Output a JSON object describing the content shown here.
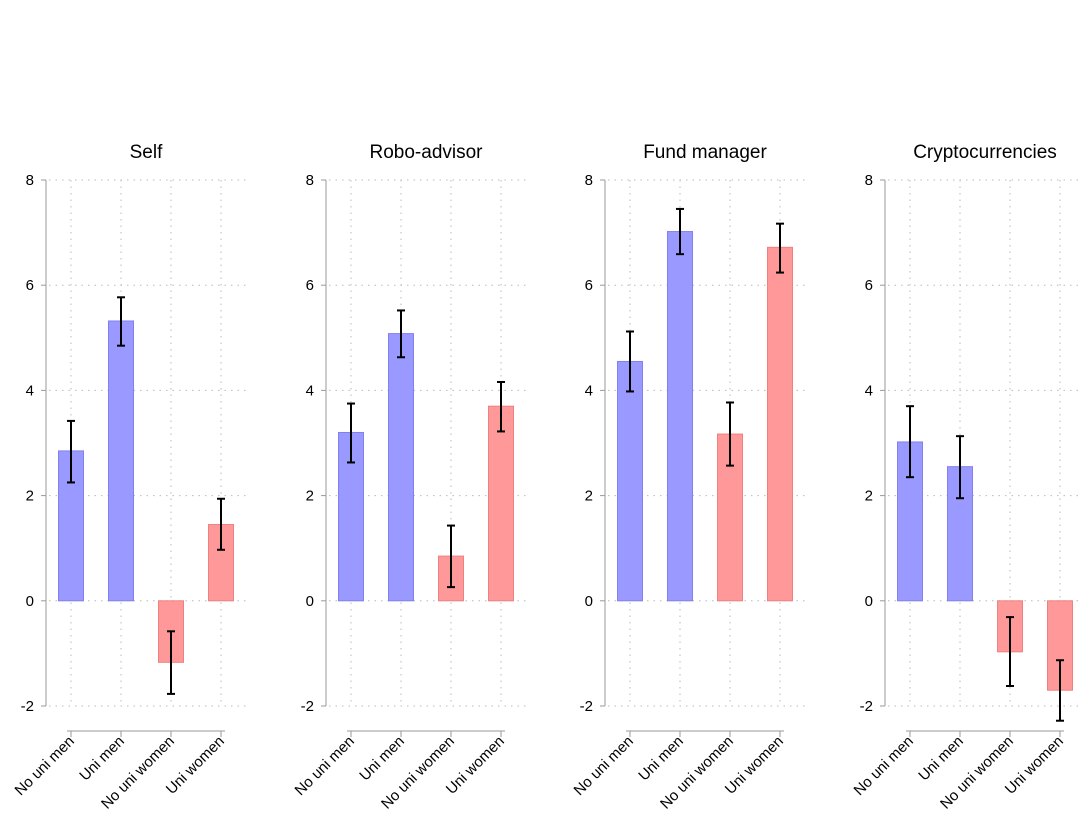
{
  "colors": {
    "men": "#9999ff",
    "women": "#ff9999",
    "men_edge": "#8080ee",
    "women_edge": "#ee8080",
    "error": "#000000"
  },
  "chart_data": [
    {
      "type": "bar",
      "title": "Self",
      "categories": [
        "No uni men",
        "Uni men",
        "No uni women",
        "Uni women"
      ],
      "values": [
        2.85,
        5.32,
        -1.17,
        1.45
      ],
      "ci_low": [
        2.25,
        4.85,
        -1.77,
        0.97
      ],
      "ci_high": [
        3.42,
        5.77,
        -0.58,
        1.94
      ],
      "ylim": [
        -2,
        8
      ],
      "yticks": [
        "-2",
        "0",
        "2",
        "4",
        "6",
        "8"
      ],
      "grid": true
    },
    {
      "type": "bar",
      "title": "Robo-advisor",
      "categories": [
        "No uni men",
        "Uni men",
        "No uni women",
        "Uni women"
      ],
      "values": [
        3.2,
        5.08,
        0.85,
        3.7
      ],
      "ci_low": [
        2.63,
        4.63,
        0.26,
        3.22
      ],
      "ci_high": [
        3.75,
        5.52,
        1.43,
        4.16
      ],
      "ylim": [
        -2,
        8
      ],
      "yticks": [
        "-2",
        "0",
        "2",
        "4",
        "6",
        "8"
      ],
      "grid": true
    },
    {
      "type": "bar",
      "title": "Fund manager",
      "categories": [
        "No uni men",
        "Uni men",
        "No uni women",
        "Uni women"
      ],
      "values": [
        4.55,
        7.02,
        3.17,
        6.72
      ],
      "ci_low": [
        3.98,
        6.59,
        2.57,
        6.24
      ],
      "ci_high": [
        5.12,
        7.45,
        3.77,
        7.17
      ],
      "ylim": [
        -2,
        8
      ],
      "yticks": [
        "-2",
        "0",
        "2",
        "4",
        "6",
        "8"
      ],
      "grid": true
    },
    {
      "type": "bar",
      "title": "Cryptocurrencies",
      "categories": [
        "No uni men",
        "Uni men",
        "No uni women",
        "Uni women"
      ],
      "values": [
        3.02,
        2.55,
        -0.97,
        -1.7
      ],
      "ci_low": [
        2.35,
        1.95,
        -1.62,
        -2.28
      ],
      "ci_high": [
        3.7,
        3.13,
        -0.31,
        -1.13
      ],
      "ylim": [
        -2,
        8
      ],
      "yticks": [
        "-2",
        "0",
        "2",
        "4",
        "6",
        "8"
      ],
      "grid": true
    }
  ]
}
